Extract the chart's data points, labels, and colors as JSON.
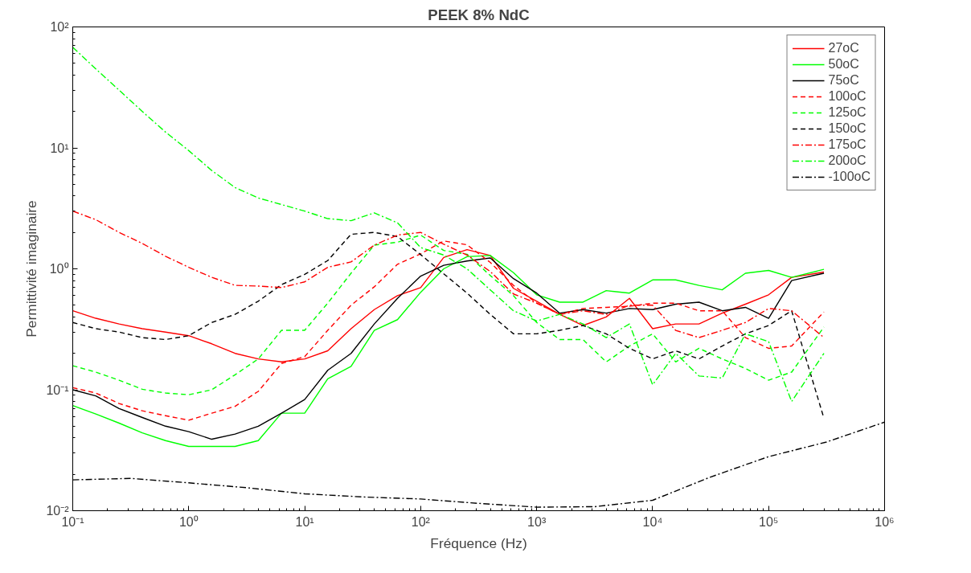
{
  "chart_data": {
    "type": "line",
    "title": "PEEK 8% NdC",
    "xlabel": "Fréquence (Hz)",
    "ylabel": "Permittivité imaginaire",
    "log": "xy",
    "grid": false,
    "legend": "top right",
    "xlim": [
      0.1,
      1000000
    ],
    "ylim": [
      0.01,
      100
    ],
    "xticks": [
      {
        "value": 0.1,
        "label": "10⁻¹"
      },
      {
        "value": 1,
        "label": "10⁰"
      },
      {
        "value": 10,
        "label": "10¹"
      },
      {
        "value": 100,
        "label": "10²"
      },
      {
        "value": 1000,
        "label": "10³"
      },
      {
        "value": 10000,
        "label": "10⁴"
      },
      {
        "value": 100000,
        "label": "10⁵"
      },
      {
        "value": 1000000,
        "label": "10⁶"
      }
    ],
    "yticks": [
      {
        "value": 0.01,
        "label": "10⁻²"
      },
      {
        "value": 0.1,
        "label": "10⁻¹"
      },
      {
        "value": 1,
        "label": "10⁰"
      },
      {
        "value": 10,
        "label": "10¹"
      },
      {
        "value": 100,
        "label": "10²"
      }
    ],
    "x": [
      0.1,
      0.158,
      0.251,
      0.398,
      0.631,
      1,
      1.58,
      2.51,
      3.98,
      6.31,
      10,
      15.8,
      25.1,
      39.8,
      63.1,
      100,
      158,
      251,
      398,
      631,
      1000,
      1580,
      2510,
      3980,
      6310,
      10000,
      15800,
      25100,
      39800,
      63100,
      100000,
      158000,
      300000
    ],
    "series": [
      {
        "name": "27oC",
        "color": "#ff0000",
        "line_style": "solid",
        "values": [
          0.45,
          0.39,
          0.35,
          0.32,
          0.3,
          0.28,
          0.24,
          0.2,
          0.18,
          0.17,
          0.18,
          0.21,
          0.32,
          0.46,
          0.6,
          0.7,
          1.24,
          1.44,
          1.29,
          0.69,
          0.54,
          0.42,
          0.34,
          0.4,
          0.57,
          0.32,
          0.35,
          0.35,
          0.43,
          0.51,
          0.61,
          0.85,
          0.94
        ]
      },
      {
        "name": "50oC",
        "color": "#00ff00",
        "line_style": "solid",
        "values": [
          0.074,
          0.063,
          0.053,
          0.044,
          0.038,
          0.034,
          0.034,
          0.034,
          0.038,
          0.064,
          0.064,
          0.123,
          0.156,
          0.31,
          0.38,
          0.64,
          1.0,
          1.26,
          1.29,
          0.93,
          0.61,
          0.53,
          0.53,
          0.66,
          0.63,
          0.81,
          0.81,
          0.73,
          0.67,
          0.92,
          0.97,
          0.85,
          0.99
        ]
      },
      {
        "name": "75oC",
        "color": "#000000",
        "line_style": "solid",
        "values": [
          0.1,
          0.089,
          0.07,
          0.059,
          0.05,
          0.045,
          0.039,
          0.043,
          0.05,
          0.064,
          0.083,
          0.145,
          0.2,
          0.35,
          0.57,
          0.87,
          1.07,
          1.16,
          1.23,
          0.83,
          0.63,
          0.43,
          0.46,
          0.43,
          0.47,
          0.46,
          0.51,
          0.53,
          0.45,
          0.48,
          0.39,
          0.8,
          0.92
        ]
      },
      {
        "name": "100oC",
        "color": "#ff0000",
        "line_style": "dashed",
        "values": [
          0.104,
          0.094,
          0.077,
          0.067,
          0.061,
          0.056,
          0.064,
          0.073,
          0.097,
          0.165,
          0.188,
          0.31,
          0.5,
          0.71,
          1.09,
          1.33,
          1.7,
          1.58,
          1.13,
          0.73,
          0.52,
          0.42,
          0.47,
          0.48,
          0.49,
          0.52,
          0.52,
          0.45,
          0.45,
          0.27,
          0.22,
          0.23,
          0.44
        ]
      },
      {
        "name": "125oC",
        "color": "#00ff00",
        "line_style": "dashed",
        "values": [
          0.158,
          0.14,
          0.12,
          0.101,
          0.094,
          0.091,
          0.1,
          0.133,
          0.18,
          0.31,
          0.31,
          0.52,
          0.92,
          1.57,
          1.66,
          1.9,
          1.42,
          1.32,
          0.88,
          0.6,
          0.36,
          0.26,
          0.26,
          0.17,
          0.23,
          0.29,
          0.17,
          0.22,
          0.18,
          0.15,
          0.12,
          0.14,
          0.33
        ]
      },
      {
        "name": "150oC",
        "color": "#000000",
        "line_style": "dashed",
        "values": [
          0.36,
          0.32,
          0.3,
          0.27,
          0.26,
          0.28,
          0.36,
          0.42,
          0.54,
          0.74,
          0.9,
          1.17,
          1.93,
          2.0,
          1.85,
          1.31,
          0.91,
          0.63,
          0.42,
          0.29,
          0.29,
          0.31,
          0.34,
          0.29,
          0.22,
          0.18,
          0.21,
          0.18,
          0.23,
          0.29,
          0.34,
          0.45,
          0.058
        ]
      },
      {
        "name": "175oC",
        "color": "#ff0000",
        "line_style": "dashdot",
        "values": [
          3.0,
          2.55,
          2.0,
          1.62,
          1.27,
          1.03,
          0.85,
          0.73,
          0.72,
          0.7,
          0.78,
          1.03,
          1.14,
          1.57,
          1.9,
          2.0,
          1.6,
          1.3,
          0.95,
          0.62,
          0.52,
          0.42,
          0.45,
          0.42,
          0.5,
          0.5,
          0.31,
          0.27,
          0.31,
          0.36,
          0.47,
          0.45,
          0.27
        ]
      },
      {
        "name": "200oC",
        "color": "#00ff00",
        "line_style": "dashdot",
        "values": [
          68,
          45,
          30,
          20,
          13.5,
          9.5,
          6.5,
          4.7,
          3.85,
          3.4,
          3.0,
          2.6,
          2.5,
          2.9,
          2.4,
          1.5,
          1.3,
          1.0,
          0.67,
          0.45,
          0.37,
          0.42,
          0.35,
          0.27,
          0.35,
          0.11,
          0.2,
          0.13,
          0.125,
          0.29,
          0.25,
          0.08,
          0.2
        ]
      },
      {
        "name": "-100oC",
        "color": "#000000",
        "line_style": "dashdot",
        "x": [
          0.1,
          0.316,
          1,
          3.16,
          10,
          31.6,
          100,
          316,
          1000,
          3160,
          10000,
          31600,
          100000,
          316000,
          1000000
        ],
        "values": [
          0.018,
          0.0185,
          0.017,
          0.0155,
          0.0138,
          0.013,
          0.0125,
          0.0115,
          0.0107,
          0.0108,
          0.0122,
          0.019,
          0.028,
          0.037,
          0.054
        ]
      }
    ]
  }
}
